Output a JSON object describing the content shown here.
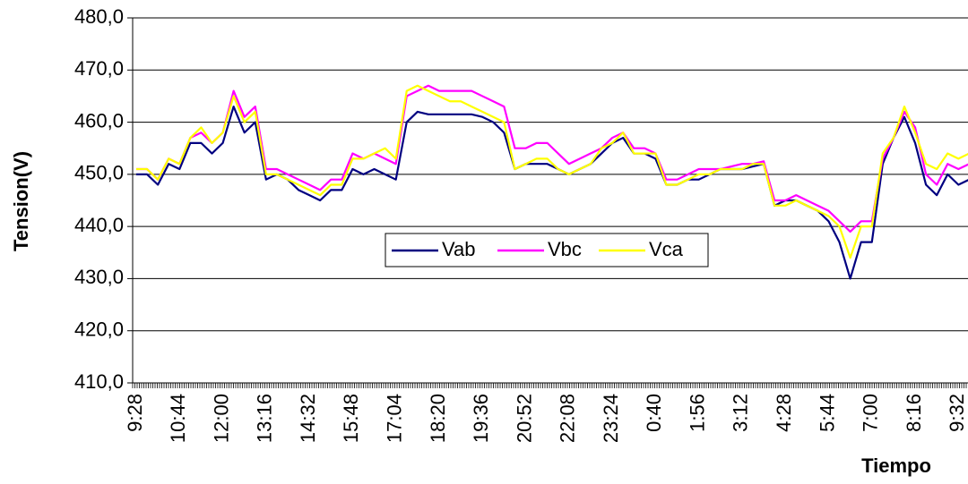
{
  "chart_data": {
    "type": "line",
    "y_label": "Tension(V)",
    "x_label": "Tiempo",
    "categories": [
      "9:28",
      null,
      null,
      null,
      "10:44",
      null,
      null,
      null,
      "12:00",
      null,
      null,
      null,
      "13:16",
      null,
      null,
      null,
      "14:32",
      null,
      null,
      null,
      "15:48",
      null,
      null,
      null,
      "17:04",
      null,
      null,
      null,
      "18:20",
      null,
      null,
      null,
      "19:36",
      null,
      null,
      null,
      "20:52",
      null,
      null,
      null,
      "22:08",
      null,
      null,
      null,
      "23:24",
      null,
      null,
      null,
      "0:40",
      null,
      null,
      null,
      "1:56",
      null,
      null,
      null,
      "3:12",
      null,
      null,
      null,
      "4:28",
      null,
      null,
      null,
      "5:44",
      null,
      null,
      null,
      "7:00",
      null,
      null,
      null,
      "8:16",
      null,
      null,
      null,
      "9:32",
      null
    ],
    "series": [
      {
        "name": "Vab",
        "color": "#000080",
        "values": [
          450,
          450,
          448,
          452,
          451,
          456,
          456,
          454,
          456,
          463,
          458,
          460,
          449,
          450,
          449,
          447,
          446,
          445,
          447,
          447,
          451,
          450,
          451,
          450,
          449,
          460,
          462,
          461.5,
          461.5,
          461.5,
          461.5,
          461.5,
          461,
          460,
          458,
          451,
          452,
          452,
          452,
          451,
          450,
          451,
          452,
          454,
          456,
          457,
          454,
          454,
          453,
          448,
          448,
          449,
          449,
          450,
          451,
          451,
          451,
          451.5,
          452,
          444,
          445,
          445,
          444,
          443,
          441,
          437,
          430,
          437,
          437,
          452,
          457,
          461,
          456,
          448,
          446,
          450,
          448,
          449
        ]
      },
      {
        "name": "Vbc",
        "color": "#ff00ff",
        "values": [
          451,
          451,
          449,
          453,
          452,
          457,
          458,
          456,
          458,
          466,
          461,
          463,
          451,
          451,
          450,
          449,
          448,
          447,
          449,
          449,
          454,
          453,
          454,
          453,
          452,
          465,
          466,
          467,
          466,
          466,
          466,
          466,
          465,
          464,
          463,
          455,
          455,
          456,
          456,
          454,
          452,
          453,
          454,
          455,
          457,
          458,
          455,
          455,
          454,
          449,
          449,
          450,
          451,
          451,
          451,
          451.5,
          452,
          452,
          452.5,
          445,
          445,
          446,
          445,
          444,
          443,
          441,
          439,
          441,
          441,
          453,
          457,
          462,
          459,
          450,
          448,
          452,
          451,
          452
        ]
      },
      {
        "name": "Vca",
        "color": "#ffff00",
        "values": [
          451,
          451,
          449,
          453,
          452,
          457,
          459,
          456,
          458,
          465,
          460,
          462,
          450,
          450,
          449,
          448,
          447,
          446,
          448,
          448,
          453,
          453,
          454,
          455,
          453,
          466,
          467,
          466,
          465,
          464,
          464,
          463,
          462,
          461,
          460,
          451,
          452,
          453,
          453,
          451,
          450,
          451,
          452,
          455,
          456,
          458,
          454,
          454,
          454,
          448,
          448,
          449,
          450,
          450,
          451,
          451,
          451,
          452,
          452,
          444,
          444,
          445,
          444,
          443,
          442,
          440,
          434,
          440,
          440,
          454,
          457,
          463,
          458,
          452,
          451,
          454,
          453,
          454
        ]
      }
    ],
    "ylim": [
      410,
      480
    ],
    "yticks": [
      {
        "value": 410,
        "label": "410,0"
      },
      {
        "value": 420,
        "label": "420,0"
      },
      {
        "value": 430,
        "label": "430,0"
      },
      {
        "value": 440,
        "label": "440,0"
      },
      {
        "value": 450,
        "label": "450,0"
      },
      {
        "value": 460,
        "label": "460,0"
      },
      {
        "value": 470,
        "label": "470,0"
      },
      {
        "value": 480,
        "label": "480,0"
      }
    ],
    "grid": true
  }
}
